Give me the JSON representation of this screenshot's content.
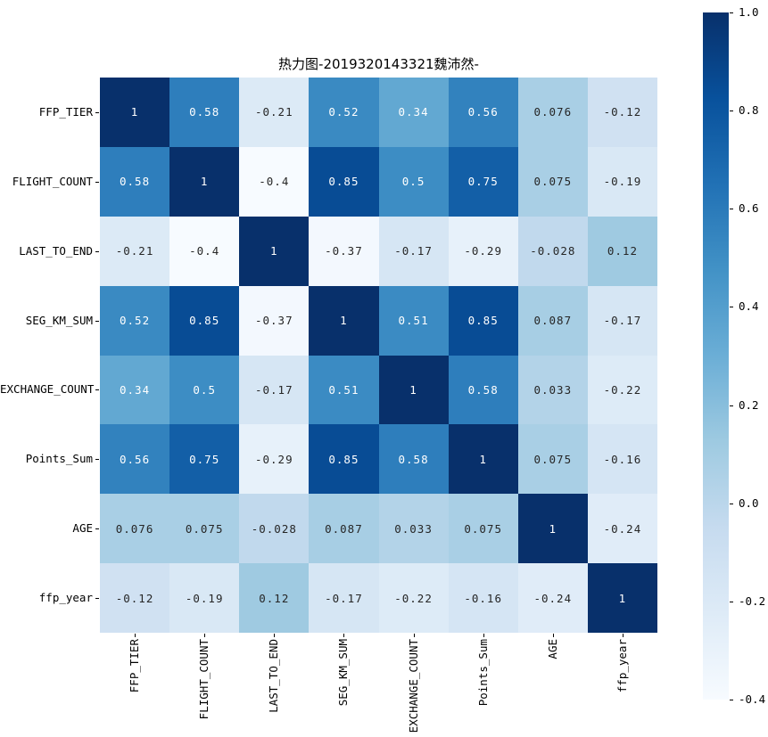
{
  "chart_data": {
    "type": "heatmap",
    "title": "热力图-2019320143321魏沛然-",
    "categories": [
      "FFP_TIER",
      "FLIGHT_COUNT",
      "LAST_TO_END",
      "SEG_KM_SUM",
      "EXCHANGE_COUNT",
      "Points_Sum",
      "AGE",
      "ffp_year"
    ],
    "values": [
      [
        1,
        0.58,
        -0.21,
        0.52,
        0.34,
        0.56,
        0.076,
        -0.12
      ],
      [
        0.58,
        1,
        -0.4,
        0.85,
        0.5,
        0.75,
        0.075,
        -0.19
      ],
      [
        -0.21,
        -0.4,
        1,
        -0.37,
        -0.17,
        -0.29,
        -0.028,
        0.12
      ],
      [
        0.52,
        0.85,
        -0.37,
        1,
        0.51,
        0.85,
        0.087,
        -0.17
      ],
      [
        0.34,
        0.5,
        -0.17,
        0.51,
        1,
        0.58,
        0.033,
        -0.22
      ],
      [
        0.56,
        0.75,
        -0.29,
        0.85,
        0.58,
        1,
        0.075,
        -0.16
      ],
      [
        0.076,
        0.075,
        -0.028,
        0.087,
        0.033,
        0.075,
        1,
        -0.24
      ],
      [
        -0.12,
        -0.19,
        0.12,
        -0.17,
        -0.22,
        -0.16,
        -0.24,
        1
      ]
    ],
    "vmin": -0.4,
    "vmax": 1.0,
    "colormap": {
      "name": "Blues",
      "anchors": [
        "#f7fbff",
        "#deebf7",
        "#c6dbef",
        "#9ecae1",
        "#6baed6",
        "#4292c6",
        "#2171b5",
        "#08519c",
        "#08306b"
      ]
    },
    "colorbar": {
      "ticks": [
        "1.0",
        "0.8",
        "0.6",
        "0.4",
        "0.2",
        "0.0",
        "-0.2",
        "-0.4"
      ],
      "tick_values": [
        1.0,
        0.8,
        0.6,
        0.4,
        0.2,
        0.0,
        -0.2,
        -0.4
      ],
      "position": "right"
    },
    "annotation_colors": {
      "on_dark": "#ffffff",
      "on_light": "#262626"
    },
    "grid": false,
    "legend": false
  }
}
